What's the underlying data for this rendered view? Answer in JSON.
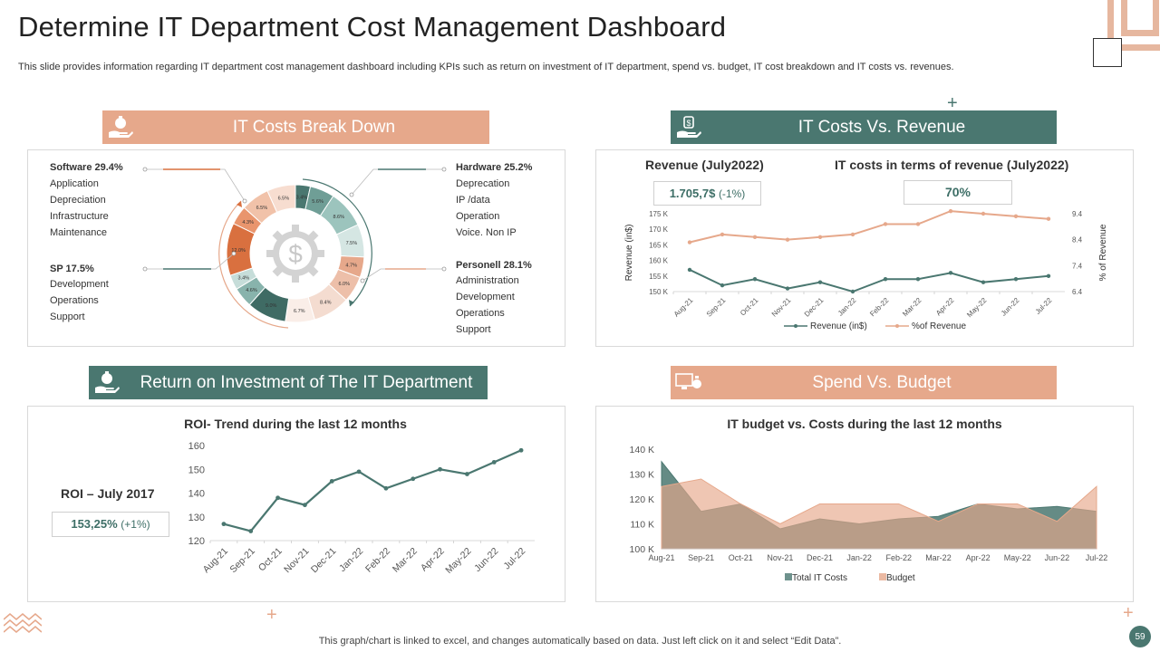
{
  "page": {
    "title": "Determine IT Department Cost Management Dashboard",
    "subtitle": "This slide provides information regarding IT department cost management dashboard including KPIs such as return on investment of IT  department, spend vs. budget, IT  cost breakdown and IT costs vs. revenues.",
    "footer": "This graph/chart is linked to excel,  and changes automatically based on data. Just left click on it and select “Edit Data”.",
    "page_number": "59"
  },
  "colors": {
    "teal": "#4a7770",
    "salmon": "#e6a88b",
    "dark_orange": "#d9703f"
  },
  "sections": {
    "breakdown": "IT Costs Break Down",
    "vs_revenue": "IT Costs Vs. Revenue",
    "roi": "Return on Investment of The IT Department",
    "spend": "Spend Vs. Budget"
  },
  "breakdown": {
    "center_symbol": "$",
    "groups": [
      {
        "title": "Software 29.4%",
        "items": [
          "Application",
          "Depreciation",
          "Infrastructure",
          "Maintenance"
        ]
      },
      {
        "title": "SP 17.5%",
        "items": [
          "Development",
          "Operations",
          "Support"
        ]
      },
      {
        "title": "Hardware 25.2%",
        "items": [
          "Deprecation",
          "IP /data",
          "Operation",
          "Voice. Non IP"
        ]
      },
      {
        "title": "Personell 28.1%",
        "items": [
          "Administration",
          "Development",
          "Operations",
          "Support"
        ]
      }
    ],
    "segments": [
      {
        "label": "3.4%",
        "value": 3.4,
        "color": "#4a7770"
      },
      {
        "label": "5.6%",
        "value": 5.6,
        "color": "#6f9e96"
      },
      {
        "label": "8.6%",
        "value": 8.6,
        "color": "#9cc4bd"
      },
      {
        "label": "7.5%",
        "value": 7.5,
        "color": "#d5e6e3"
      },
      {
        "label": "4.7%",
        "value": 4.7,
        "color": "#e6a88b"
      },
      {
        "label": "6.0%",
        "value": 6.0,
        "color": "#edbfa9"
      },
      {
        "label": "8.4%",
        "value": 8.4,
        "color": "#f4dcd0"
      },
      {
        "label": "6.7%",
        "value": 6.7,
        "color": "#faeee8"
      },
      {
        "label": "9.0%",
        "value": 9.0,
        "color": "#3f6b64"
      },
      {
        "label": "4.6%",
        "value": 4.6,
        "color": "#88b3ac"
      },
      {
        "label": "3.4%",
        "value": 3.4,
        "color": "#c6ddd9"
      },
      {
        "label": "12.0%",
        "value": 12.0,
        "color": "#d9703f"
      },
      {
        "label": "4.3%",
        "value": 4.3,
        "color": "#e9956d"
      },
      {
        "label": "6.5%",
        "value": 6.5,
        "color": "#f1c2a9"
      },
      {
        "label": "6.5%",
        "value": 6.5,
        "color": "#f7ddd0"
      }
    ]
  },
  "revenue_panel": {
    "revenue_title": "Revenue (July2022)",
    "revenue_value": "1.705,7$",
    "revenue_change": "(-1%)",
    "costs_title": "IT costs in terms of revenue (July2022)",
    "costs_value": "70%"
  },
  "roi_panel": {
    "label": "ROI – July 2017",
    "value": "153,25%",
    "change": "(+1%)"
  },
  "chart_data": [
    {
      "type": "line",
      "categories": [
        "Aug-21",
        "Sep-21",
        "Oct-21",
        "Nov-21",
        "Dec-21",
        "Jan-22",
        "Feb-22",
        "Mar-22",
        "Apr-22",
        "May-22",
        "Jun-22",
        "Jul-22"
      ],
      "series": [
        {
          "name": "Revenue (in$)",
          "axis": "left",
          "color": "#4a7770",
          "values": [
            157,
            152,
            154,
            151,
            153,
            150,
            154,
            154,
            156,
            153,
            154,
            155
          ]
        },
        {
          "name": "%of Revenue",
          "axis": "right",
          "color": "#e6a88b",
          "values": [
            8.3,
            8.6,
            8.5,
            8.4,
            8.5,
            8.6,
            9.0,
            9.0,
            9.5,
            9.4,
            9.3,
            9.2
          ]
        }
      ],
      "ylabel": "Revenue (in$)",
      "ylabel_right": "% of Revenue",
      "ylim": [
        150,
        175
      ],
      "yticks": [
        "150 K",
        "155 K",
        "160 K",
        "165 K",
        "170 K",
        "175 K"
      ],
      "ylim_right": [
        6.4,
        9.4
      ],
      "yticks_right": [
        "6.4",
        "7.4",
        "8.4",
        "9.4"
      ]
    },
    {
      "type": "line",
      "title": "ROI- Trend during the last 12 months",
      "categories": [
        "Aug-21",
        "Sep-21",
        "Oct-21",
        "Nov-21",
        "Dec-21",
        "Jan-22",
        "Feb-22",
        "Mar-22",
        "Apr-22",
        "May-22",
        "Jun-22",
        "Jul-22"
      ],
      "series": [
        {
          "name": "ROI",
          "color": "#4a7770",
          "values": [
            127,
            124,
            138,
            135,
            145,
            149,
            142,
            146,
            150,
            148,
            153,
            158
          ]
        }
      ],
      "ylim": [
        120,
        160
      ],
      "yticks": [
        "120",
        "130",
        "140",
        "150",
        "160"
      ]
    },
    {
      "type": "area",
      "title": "IT budget vs. Costs during the last 12 months",
      "categories": [
        "Aug-21",
        "Sep-21",
        "Oct-21",
        "Nov-21",
        "Dec-21",
        "Jan-22",
        "Feb-22",
        "Mar-22",
        "Apr-22",
        "May-22",
        "Jun-22",
        "Jul-22"
      ],
      "series": [
        {
          "name": "Total IT Costs",
          "color": "#4a7770",
          "values": [
            135,
            115,
            118,
            108,
            112,
            110,
            112,
            113,
            118,
            116,
            117,
            115
          ]
        },
        {
          "name": "Budget",
          "color": "#e6a88b",
          "values": [
            125,
            128,
            118,
            110,
            118,
            118,
            118,
            111,
            118,
            118,
            111,
            125
          ]
        }
      ],
      "ylim": [
        100,
        140
      ],
      "yticks": [
        "100 K",
        "110 K",
        "120 K",
        "130 K",
        "140 K"
      ]
    }
  ]
}
